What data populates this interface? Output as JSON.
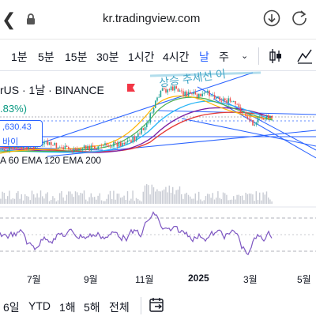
{
  "browser": {
    "url": "kr.tradingview.com",
    "icons": [
      "back-arrow-icon",
      "lock-icon",
      "download-icon",
      "reload-icon"
    ]
  },
  "intervals": {
    "items": [
      "1분",
      "5분",
      "15분",
      "30분",
      "1시간",
      "4시간",
      "날",
      "주"
    ],
    "active": "날",
    "dropdown_icon": "chevron-down-icon"
  },
  "toolbar_icons": [
    "candlestick-icon",
    "indicators-icon"
  ],
  "legend": {
    "symbol": "rUS · 1날 · BINANCE",
    "change": ".83%)",
    "price": ",630.43",
    "side": "바이",
    "emas": "A 60 EMA 120 EMA 200"
  },
  "annotation": "상승 추세선 이",
  "colors": {
    "candle_up": "#26a69a",
    "candle_down": "#ef5350",
    "ema_short": "#ffb300",
    "ema_mid": "#4caf50",
    "ema_60": "#29b6f6",
    "ema_120": "#7b1fa2",
    "ema_200": "#e53935",
    "rsi": "#7e57c2",
    "trendline": "#2962ff"
  },
  "xaxis": {
    "labels": [
      "7월",
      "9월",
      "11월",
      "2025",
      "3월",
      "5월"
    ]
  },
  "ranges": {
    "items": [
      "6일",
      "YTD",
      "1해",
      "5해",
      "전체"
    ],
    "goto_icon": "calendar-goto-icon"
  }
}
